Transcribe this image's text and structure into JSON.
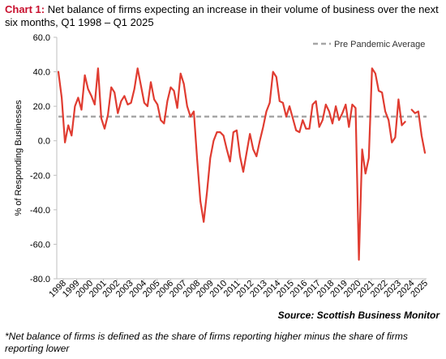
{
  "header": {
    "label": "Chart 1:",
    "title": "Net balance of firms expecting an increase in their volume of business over the next six months, Q1 1998 – Q1 2025"
  },
  "source": "Source: Scottish Business Monitor",
  "footnote": "*Net balance of firms is defined as the share of firms reporting higher minus the share of firms reporting lower",
  "colors": {
    "series": "#e03c31",
    "average": "#a6a6a6",
    "axis": "#bfbfbf"
  },
  "chart_data": {
    "type": "line",
    "title": "Net balance of firms expecting an increase in their volume of business over the next six months, Q1 1998 – Q1 2025",
    "ylabel": "% of Responding Businesses",
    "xlabel": "",
    "ylim": [
      -80,
      60
    ],
    "y_ticks": [
      60,
      40,
      20,
      0,
      -20,
      -40,
      -60,
      -80
    ],
    "y_tick_labels": [
      "60.0",
      "40.0",
      "20.0",
      "0.0",
      "-20.0",
      "-40.0",
      "-60.0",
      "-80.0"
    ],
    "x_tick_labels": [
      "1998",
      "1999",
      "2000",
      "2001",
      "2002",
      "2003",
      "2004",
      "2005",
      "2006",
      "2007",
      "2008",
      "2009",
      "2010",
      "2011",
      "2012",
      "2013",
      "2014",
      "2015",
      "2016",
      "2017",
      "2018",
      "2019",
      "2020",
      "2021",
      "2022",
      "2023",
      "2024",
      "2025"
    ],
    "grid": false,
    "legend": {
      "position": "top-right",
      "entries": [
        "Pre Pandemic Average"
      ]
    },
    "reference_line": {
      "name": "Pre Pandemic Average",
      "value": 14,
      "style": "dashed"
    },
    "series": [
      {
        "values": [
          40,
          25,
          -1,
          9,
          3,
          20,
          25,
          18,
          38,
          30,
          26,
          21,
          42,
          13,
          7,
          15,
          31,
          28,
          16,
          23,
          26,
          21,
          22,
          30,
          42,
          32,
          22,
          20,
          34,
          24,
          21,
          12,
          10,
          23,
          31,
          29,
          19,
          39,
          33,
          20,
          14,
          17,
          -10,
          -35,
          -47,
          -30,
          -10,
          0,
          5,
          5,
          3,
          -5,
          -12,
          5,
          6,
          -9,
          -18,
          -7,
          4,
          -5,
          -9,
          0,
          8,
          17,
          22,
          40,
          37,
          23,
          22,
          14,
          20,
          13,
          6,
          5,
          12,
          7,
          7,
          21,
          23,
          8,
          12,
          21,
          17,
          10,
          20,
          12,
          16,
          21,
          8,
          21,
          19,
          -69,
          -5,
          -19,
          -10,
          42,
          39,
          29,
          28,
          17,
          12,
          -1,
          2,
          24,
          9,
          11,
          null,
          18,
          16,
          17,
          3,
          -7
        ]
      }
    ]
  }
}
